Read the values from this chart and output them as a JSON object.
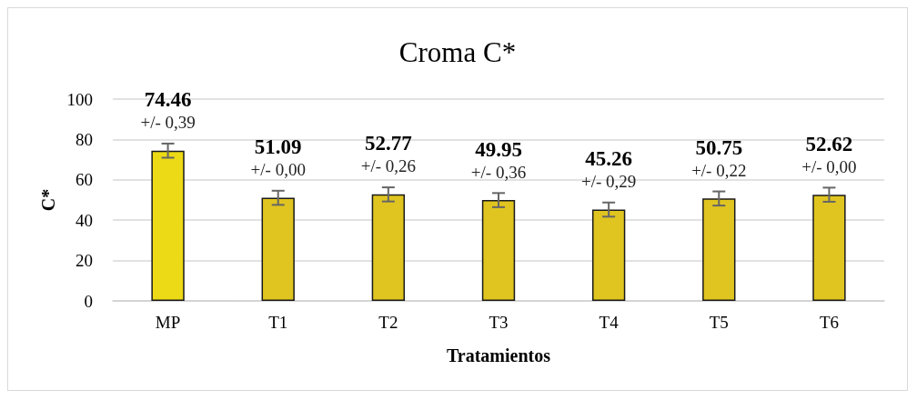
{
  "chart_data": {
    "type": "bar",
    "title": "Croma C*",
    "xlabel": "Tratamientos",
    "ylabel": "C*",
    "categories": [
      "MP",
      "T1",
      "T2",
      "T3",
      "T4",
      "T5",
      "T6"
    ],
    "values": [
      74.46,
      51.09,
      52.77,
      49.95,
      45.26,
      50.75,
      52.62
    ],
    "colors": [
      "#ecda16",
      "#e0c520",
      "#e0c520",
      "#e0c520",
      "#e0c520",
      "#e0c520",
      "#e0c520"
    ],
    "errors": [
      3.5,
      3.5,
      3.5,
      3.5,
      3.5,
      3.5,
      3.5
    ],
    "value_labels": [
      "74.46\n+/- 0,39",
      "51.09\n+/- 0,00",
      "52.77\n+/- 0,26",
      "49.95\n+/- 0,36",
      "45.26\n+/- 0,29",
      "50.75\n+/- 0,22",
      "52.62\n+/- 0,00"
    ],
    "ylim": [
      0,
      100
    ],
    "yticks": [
      0,
      20,
      40,
      60,
      80,
      100
    ],
    "grid": "y"
  }
}
